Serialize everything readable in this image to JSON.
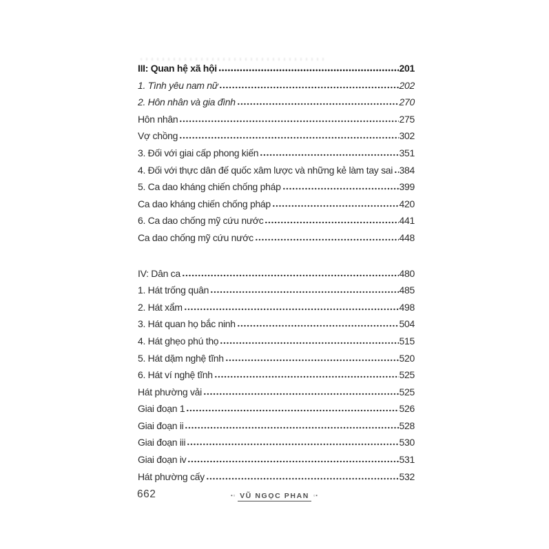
{
  "colors": {
    "ink": "#2b2b2b",
    "ink_bold": "#1d1d1d",
    "footer_ink": "#4e4e4e",
    "background": "#ffffff"
  },
  "toc": {
    "sections": [
      {
        "rows": [
          {
            "label": "III: Quan hệ xã hội",
            "page": "201",
            "style": "bold"
          },
          {
            "label": "1. Tình yêu nam nữ",
            "page": "202",
            "style": "italic"
          },
          {
            "label": "2. Hôn nhân và gia đình",
            "page": "270",
            "style": "italic"
          },
          {
            "label": "Hôn nhân",
            "page": "275",
            "style": "regular"
          },
          {
            "label": "Vợ chồng",
            "page": "302",
            "style": "regular"
          },
          {
            "label": "3. Đối với giai cấp phong kiến",
            "page": "351",
            "style": "regular"
          },
          {
            "label": "4. Đối với thực dân đế quốc xâm lược và những kẻ làm tay sai",
            "page": "384",
            "style": "regular"
          },
          {
            "label": "5. Ca dao kháng chiến chống pháp",
            "page": "399",
            "style": "regular"
          },
          {
            "label": "Ca dao kháng chiến chống pháp",
            "page": "420",
            "style": "regular"
          },
          {
            "label": "6. Ca dao chống mỹ cứu nước",
            "page": "441",
            "style": "regular"
          },
          {
            "label": "Ca dao chống mỹ cứu nước",
            "page": "448",
            "style": "regular"
          }
        ]
      },
      {
        "rows": [
          {
            "label": "IV: Dân ca",
            "page": "480",
            "style": "regular"
          },
          {
            "label": "1. Hát trống quân",
            "page": "485",
            "style": "regular"
          },
          {
            "label": "2. Hát xẩm",
            "page": "498",
            "style": "regular"
          },
          {
            "label": "3. Hát quan họ bắc ninh",
            "page": "504",
            "style": "regular"
          },
          {
            "label": "4. Hát ghẹo phú thọ",
            "page": "515",
            "style": "regular"
          },
          {
            "label": "5. Hát dặm nghệ tĩnh",
            "page": "520",
            "style": "regular"
          },
          {
            "label": "6. Hát ví nghệ tĩnh",
            "page": "525",
            "style": "regular"
          },
          {
            "label": "Hát phường vải",
            "page": "525",
            "style": "regular"
          },
          {
            "label": "Giai đoạn 1",
            "page": "526",
            "style": "regular"
          },
          {
            "label": "Giai đoạn ii",
            "page": "528",
            "style": "regular"
          },
          {
            "label": "Giai đoạn iii",
            "page": "530",
            "style": "regular"
          },
          {
            "label": "Giai đoạn iv",
            "page": "531",
            "style": "regular"
          },
          {
            "label": "Hát phường cấy",
            "page": "532",
            "style": "regular"
          }
        ]
      }
    ]
  },
  "footer": {
    "folio": "662",
    "logo_text": "VŨ NGỌC PHAN",
    "ornament_left": "▪▫",
    "ornament_right": "▫▪"
  }
}
